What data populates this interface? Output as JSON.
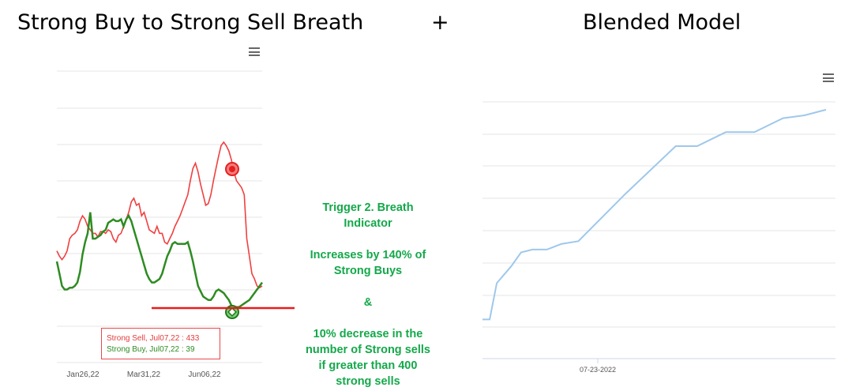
{
  "header": {
    "left_title": "Strong Buy to Strong Sell Breath",
    "plus": "+",
    "right_title": "Blended Model"
  },
  "menu_icon": "hamburger-menu-icon",
  "annotation": {
    "lines": [
      "Trigger 2. Breath",
      "Indicator",
      "",
      "Increases by 140% of",
      "Strong Buys",
      "",
      "&",
      "",
      "10% decrease in the",
      "number of Strong sells",
      "if greater than 400",
      "strong sells"
    ],
    "color": "#14a84a"
  },
  "tooltip": {
    "sell_text": "Strong Sell, Jul07,22 : 433",
    "buy_text": "Strong Buy, Jul07,22 : 39"
  },
  "chart_data": [
    {
      "type": "line",
      "title": "Strong Buy to Strong Sell Breath",
      "x_tick_labels": [
        "Jan26,22",
        "Mar31,22",
        "Jun06,22"
      ],
      "grid": true,
      "y_axis_labels_visible": false,
      "series": [
        {
          "name": "Strong Sell",
          "color": "#f04040",
          "values": [
            0.38,
            0.35,
            0.33,
            0.35,
            0.38,
            0.45,
            0.47,
            0.48,
            0.5,
            0.55,
            0.58,
            0.56,
            0.52,
            0.5,
            0.48,
            0.48,
            0.46,
            0.49,
            0.49,
            0.48,
            0.5,
            0.49,
            0.45,
            0.43,
            0.47,
            0.48,
            0.52,
            0.56,
            0.6,
            0.66,
            0.68,
            0.64,
            0.65,
            0.58,
            0.6,
            0.55,
            0.5,
            0.49,
            0.48,
            0.52,
            0.48,
            0.48,
            0.43,
            0.42,
            0.45,
            0.48,
            0.52,
            0.55,
            0.58,
            0.62,
            0.66,
            0.7,
            0.78,
            0.85,
            0.88,
            0.83,
            0.76,
            0.7,
            0.64,
            0.65,
            0.7,
            0.78,
            0.85,
            0.92,
            0.98,
            1.0,
            0.98,
            0.95,
            0.9,
            0.83,
            0.78,
            0.76,
            0.74,
            0.7,
            0.45,
            0.35,
            0.25,
            0.22,
            0.18,
            0.17,
            0.18
          ],
          "marker_label": "Jul07,22",
          "marker_value": 433
        },
        {
          "name": "Strong Buy",
          "color": "#2e8b22",
          "values": [
            0.32,
            0.25,
            0.18,
            0.16,
            0.16,
            0.17,
            0.17,
            0.18,
            0.2,
            0.26,
            0.36,
            0.43,
            0.48,
            0.6,
            0.45,
            0.45,
            0.46,
            0.47,
            0.49,
            0.5,
            0.54,
            0.55,
            0.56,
            0.55,
            0.55,
            0.56,
            0.52,
            0.56,
            0.58,
            0.55,
            0.5,
            0.45,
            0.4,
            0.35,
            0.3,
            0.25,
            0.22,
            0.2,
            0.2,
            0.21,
            0.22,
            0.25,
            0.3,
            0.35,
            0.38,
            0.42,
            0.43,
            0.42,
            0.42,
            0.42,
            0.42,
            0.43,
            0.38,
            0.32,
            0.25,
            0.18,
            0.15,
            0.12,
            0.11,
            0.1,
            0.1,
            0.12,
            0.15,
            0.16,
            0.15,
            0.14,
            0.12,
            0.1,
            0.07,
            0.06,
            0.06,
            0.06,
            0.07,
            0.08,
            0.09,
            0.1,
            0.12,
            0.14,
            0.16,
            0.18,
            0.2
          ],
          "marker_label": "Jul07,22",
          "marker_value": 39
        }
      ],
      "threshold_line_color": "#e81c1c"
    },
    {
      "type": "line",
      "title": "Blended Model",
      "x_tick_labels": [
        "07-23-2022"
      ],
      "grid": true,
      "y_axis_labels_visible": false,
      "series": [
        {
          "color": "#9fc8ec",
          "points": [
            [
              0,
              0.14
            ],
            [
              0.05,
              0.14
            ],
            [
              0.1,
              0.27
            ],
            [
              0.2,
              0.33
            ],
            [
              0.27,
              0.38
            ],
            [
              0.35,
              0.39
            ],
            [
              0.45,
              0.39
            ],
            [
              0.55,
              0.41
            ],
            [
              0.67,
              0.42
            ],
            [
              1.0,
              0.59
            ],
            [
              1.35,
              0.76
            ],
            [
              1.5,
              0.76
            ],
            [
              1.7,
              0.81
            ],
            [
              1.9,
              0.81
            ],
            [
              2.1,
              0.86
            ],
            [
              2.25,
              0.87
            ],
            [
              2.4,
              0.89
            ]
          ]
        }
      ]
    }
  ]
}
